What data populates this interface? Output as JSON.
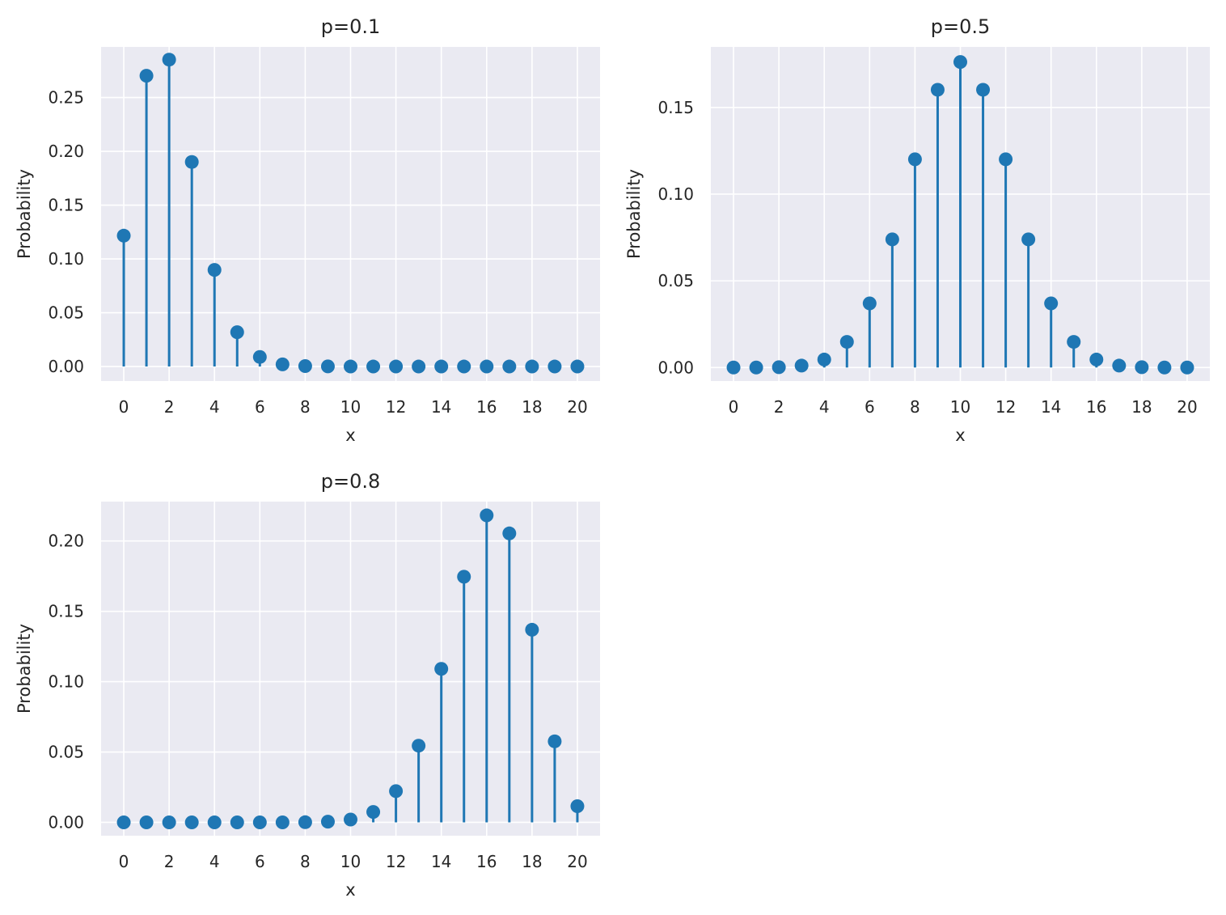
{
  "colors": {
    "stem": "#1f77b4",
    "axes_bg": "#eaeaf2",
    "grid": "#ffffff",
    "text": "#262626"
  },
  "chart_data": [
    {
      "type": "stem",
      "title": "p=0.1",
      "xlabel": "x",
      "ylabel": "Probability",
      "xlim": [
        -1,
        21
      ],
      "ylim": [
        -0.0135,
        0.297
      ],
      "xticks": [
        0,
        2,
        4,
        6,
        8,
        10,
        12,
        14,
        16,
        18,
        20
      ],
      "yticks": [
        0.0,
        0.05,
        0.1,
        0.15,
        0.2,
        0.25
      ],
      "ytick_labels": [
        "0.00",
        "0.05",
        "0.10",
        "0.15",
        "0.20",
        "0.25"
      ],
      "grid": true,
      "x": [
        0,
        1,
        2,
        3,
        4,
        5,
        6,
        7,
        8,
        9,
        10,
        11,
        12,
        13,
        14,
        15,
        16,
        17,
        18,
        19,
        20
      ],
      "values": [
        0.1216,
        0.2702,
        0.2852,
        0.1901,
        0.0898,
        0.0319,
        0.0089,
        0.002,
        0.0004,
        0.0001,
        0.0,
        0.0,
        0.0,
        0.0,
        0.0,
        0.0,
        0.0,
        0.0,
        0.0,
        0.0,
        0.0
      ]
    },
    {
      "type": "stem",
      "title": "p=0.5",
      "xlabel": "x",
      "ylabel": "Probability",
      "xlim": [
        -1,
        21
      ],
      "ylim": [
        -0.0078,
        0.1849
      ],
      "xticks": [
        0,
        2,
        4,
        6,
        8,
        10,
        12,
        14,
        16,
        18,
        20
      ],
      "yticks": [
        0.0,
        0.05,
        0.1,
        0.15
      ],
      "ytick_labels": [
        "0.00",
        "0.05",
        "0.10",
        "0.15"
      ],
      "grid": true,
      "x": [
        0,
        1,
        2,
        3,
        4,
        5,
        6,
        7,
        8,
        9,
        10,
        11,
        12,
        13,
        14,
        15,
        16,
        17,
        18,
        19,
        20
      ],
      "values": [
        0.0,
        0.0,
        0.0002,
        0.0011,
        0.0046,
        0.0148,
        0.037,
        0.0739,
        0.1201,
        0.1602,
        0.1762,
        0.1602,
        0.1201,
        0.0739,
        0.037,
        0.0148,
        0.0046,
        0.0011,
        0.0002,
        0.0,
        0.0
      ]
    },
    {
      "type": "stem",
      "title": "p=0.8",
      "xlabel": "x",
      "ylabel": "Probability",
      "xlim": [
        -1,
        21
      ],
      "ylim": [
        -0.0095,
        0.228
      ],
      "xticks": [
        0,
        2,
        4,
        6,
        8,
        10,
        12,
        14,
        16,
        18,
        20
      ],
      "yticks": [
        0.0,
        0.05,
        0.1,
        0.15,
        0.2
      ],
      "ytick_labels": [
        "0.00",
        "0.05",
        "0.10",
        "0.15",
        "0.20"
      ],
      "grid": true,
      "x": [
        0,
        1,
        2,
        3,
        4,
        5,
        6,
        7,
        8,
        9,
        10,
        11,
        12,
        13,
        14,
        15,
        16,
        17,
        18,
        19,
        20
      ],
      "values": [
        0.0,
        0.0,
        0.0,
        0.0,
        0.0,
        0.0,
        0.0,
        0.0,
        0.0001,
        0.0005,
        0.002,
        0.0074,
        0.0222,
        0.0545,
        0.1091,
        0.1746,
        0.2182,
        0.2054,
        0.1369,
        0.0576,
        0.0115
      ]
    }
  ]
}
